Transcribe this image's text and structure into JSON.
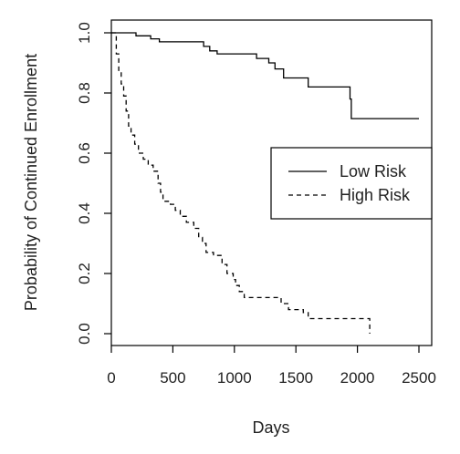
{
  "chart_data": {
    "type": "line",
    "title": "",
    "xlabel": "Days",
    "ylabel": "Probability of Continued Enrollment",
    "xlim": [
      0,
      2500
    ],
    "ylim": [
      0,
      1.0
    ],
    "x_ticks": [
      "0",
      "500",
      "1000",
      "1500",
      "2000",
      "2500"
    ],
    "y_ticks": [
      "0.0",
      "0.2",
      "0.4",
      "0.6",
      "0.8",
      "1.0"
    ],
    "grid": false,
    "legend_position": "right",
    "series": [
      {
        "name": "Low Risk",
        "line_style": "solid",
        "color": "#000000",
        "step": true,
        "points": [
          [
            0,
            1.0
          ],
          [
            200,
            0.99
          ],
          [
            320,
            0.98
          ],
          [
            390,
            0.97
          ],
          [
            750,
            0.955
          ],
          [
            800,
            0.94
          ],
          [
            860,
            0.93
          ],
          [
            1180,
            0.915
          ],
          [
            1280,
            0.9
          ],
          [
            1330,
            0.88
          ],
          [
            1400,
            0.85
          ],
          [
            1600,
            0.82
          ],
          [
            1940,
            0.78
          ],
          [
            1950,
            0.715
          ],
          [
            2500,
            0.715
          ]
        ]
      },
      {
        "name": "High Risk",
        "line_style": "dashed",
        "color": "#000000",
        "step": true,
        "points": [
          [
            0,
            1.0
          ],
          [
            40,
            0.93
          ],
          [
            60,
            0.87
          ],
          [
            80,
            0.83
          ],
          [
            100,
            0.79
          ],
          [
            120,
            0.74
          ],
          [
            140,
            0.69
          ],
          [
            160,
            0.66
          ],
          [
            190,
            0.63
          ],
          [
            220,
            0.6
          ],
          [
            260,
            0.58
          ],
          [
            300,
            0.56
          ],
          [
            340,
            0.54
          ],
          [
            380,
            0.5
          ],
          [
            400,
            0.47
          ],
          [
            420,
            0.44
          ],
          [
            480,
            0.43
          ],
          [
            520,
            0.41
          ],
          [
            560,
            0.39
          ],
          [
            610,
            0.37
          ],
          [
            670,
            0.35
          ],
          [
            710,
            0.32
          ],
          [
            740,
            0.3
          ],
          [
            770,
            0.27
          ],
          [
            830,
            0.26
          ],
          [
            900,
            0.23
          ],
          [
            940,
            0.2
          ],
          [
            990,
            0.18
          ],
          [
            1010,
            0.16
          ],
          [
            1040,
            0.14
          ],
          [
            1080,
            0.12
          ],
          [
            1380,
            0.1
          ],
          [
            1440,
            0.08
          ],
          [
            1560,
            0.07
          ],
          [
            1600,
            0.05
          ],
          [
            2080,
            0.05
          ],
          [
            2100,
            0.0
          ]
        ]
      }
    ]
  }
}
